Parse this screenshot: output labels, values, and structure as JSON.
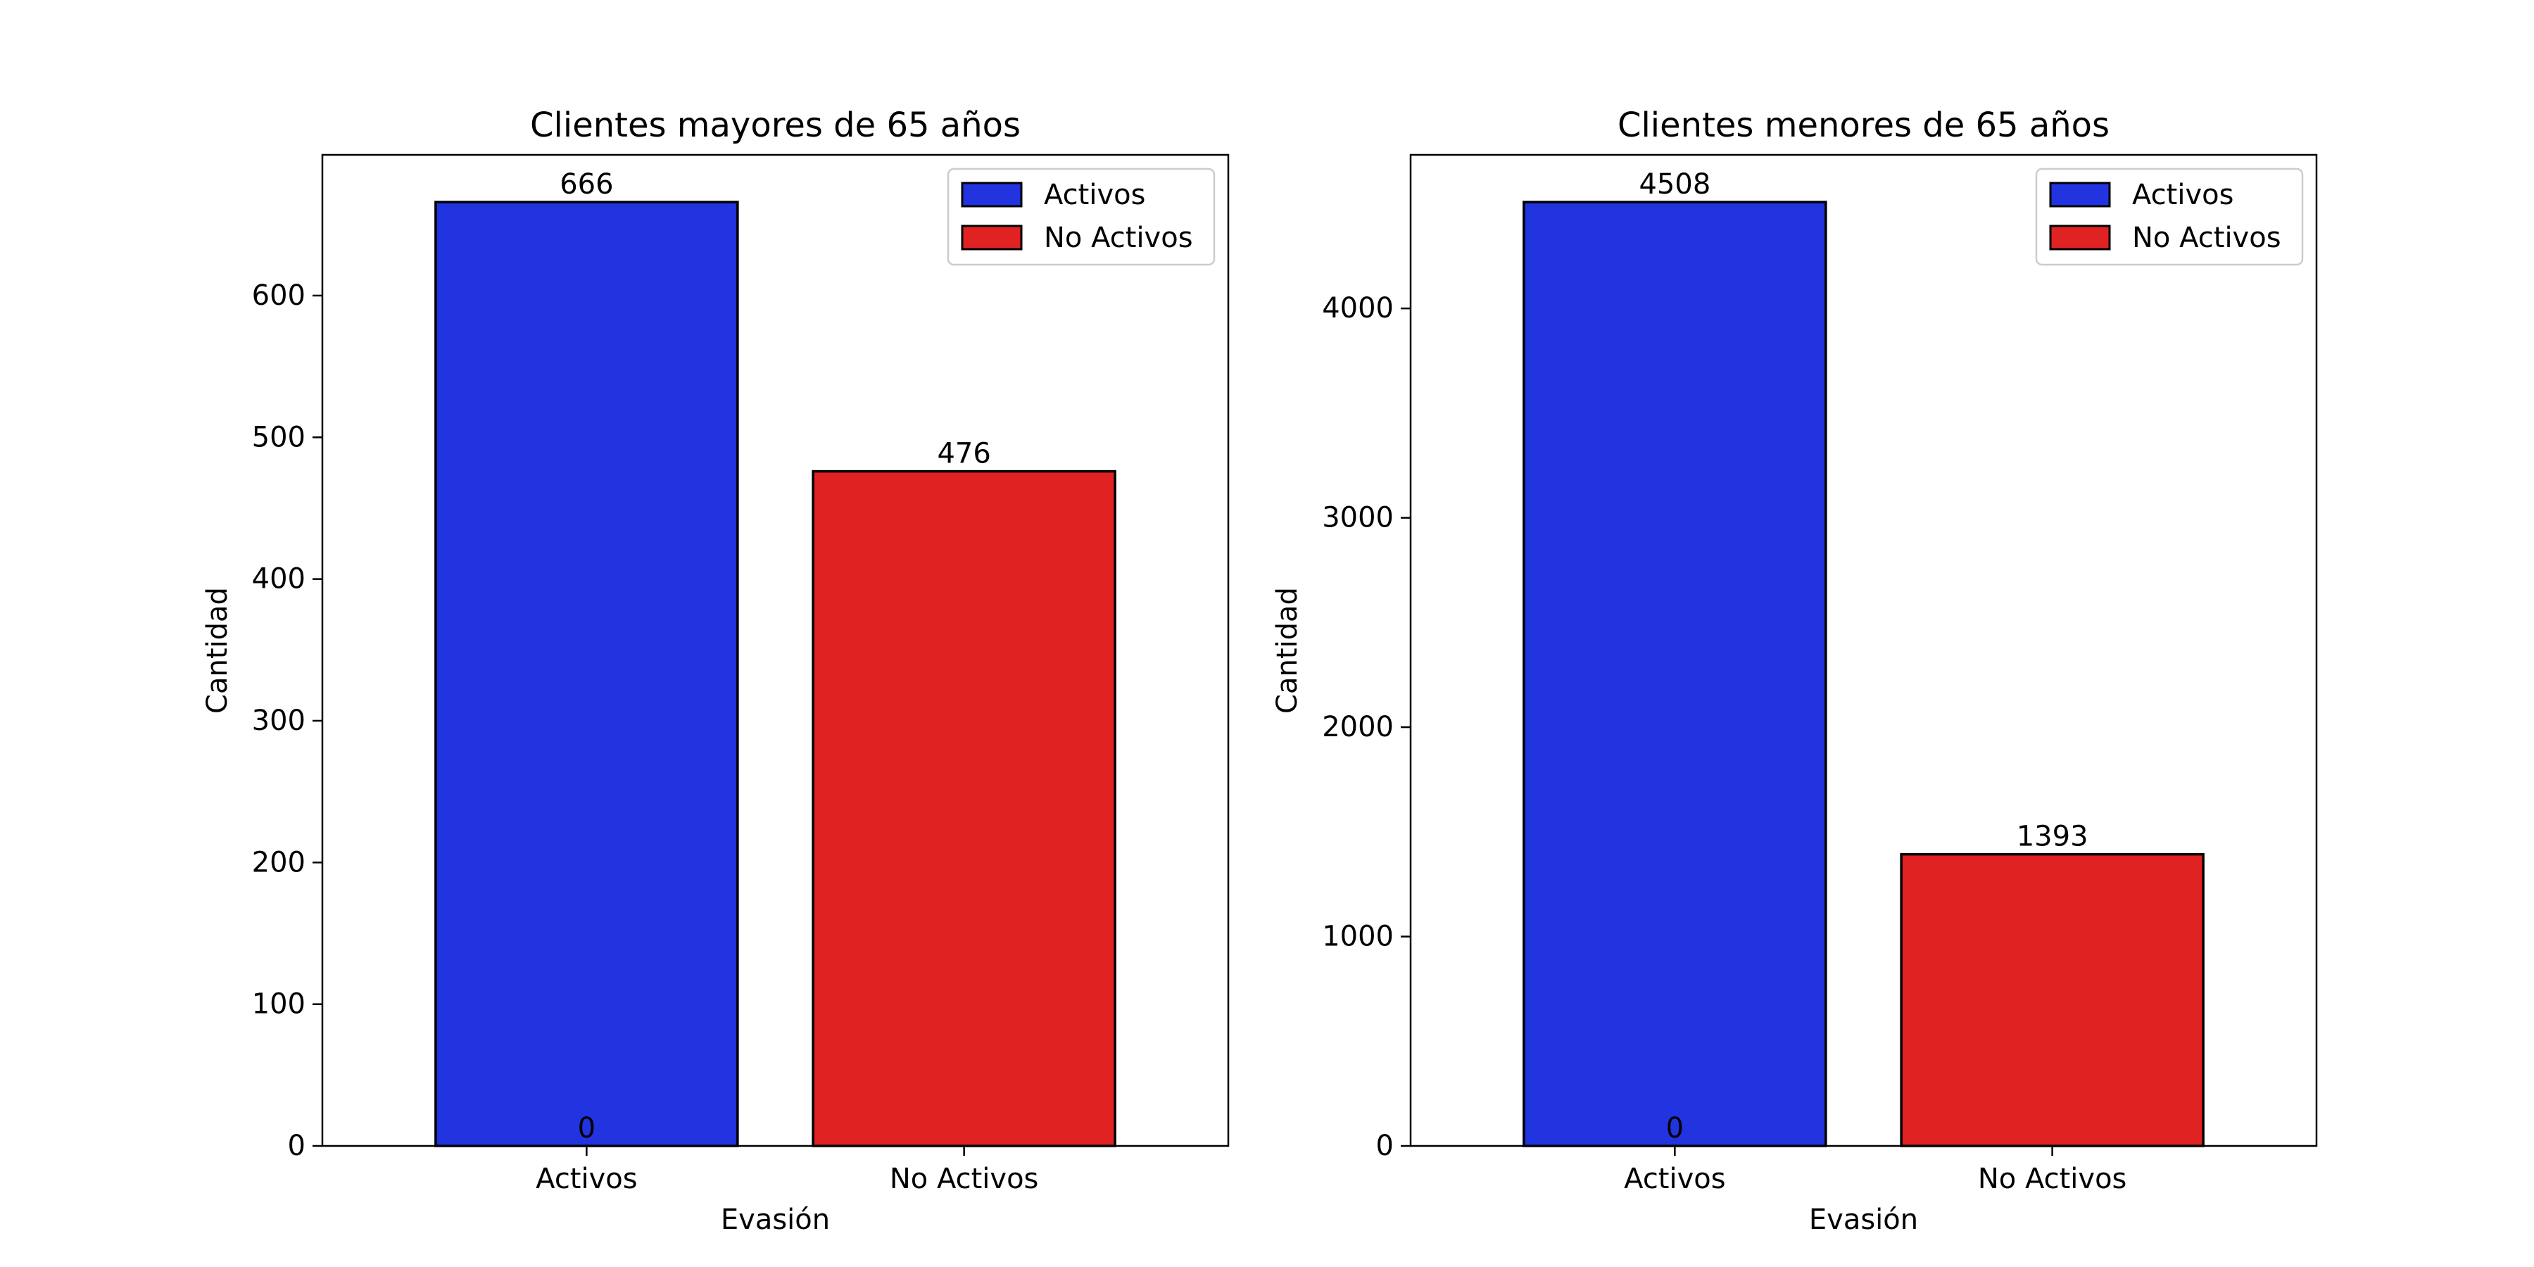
{
  "chart_data": [
    {
      "type": "bar",
      "title": "Clientes mayores de 65 años",
      "xlabel": "Evasión",
      "ylabel": "Cantidad",
      "categories": [
        "Activos",
        "No Activos"
      ],
      "series": [
        {
          "name": "Activos",
          "values": [
            666,
            0
          ],
          "color": "#2233e0"
        },
        {
          "name": "No Activos",
          "values": [
            0,
            476
          ],
          "color": "#e02222"
        }
      ],
      "bar_labels": [
        "666",
        "476"
      ],
      "extra_label": "0",
      "yticks": [
        0,
        100,
        200,
        300,
        400,
        500,
        600
      ],
      "ylim": [
        0,
        699.3
      ],
      "legend_position": "upper right"
    },
    {
      "type": "bar",
      "title": "Clientes menores de 65 años",
      "xlabel": "Evasión",
      "ylabel": "Cantidad",
      "categories": [
        "Activos",
        "No Activos"
      ],
      "series": [
        {
          "name": "Activos",
          "values": [
            4508,
            0
          ],
          "color": "#2233e0"
        },
        {
          "name": "No Activos",
          "values": [
            0,
            1393
          ],
          "color": "#e02222"
        }
      ],
      "bar_labels": [
        "4508",
        "1393"
      ],
      "extra_label": "0",
      "yticks": [
        0,
        1000,
        2000,
        3000,
        4000
      ],
      "ylim": [
        0,
        4733.4
      ],
      "legend_position": "upper right"
    }
  ]
}
